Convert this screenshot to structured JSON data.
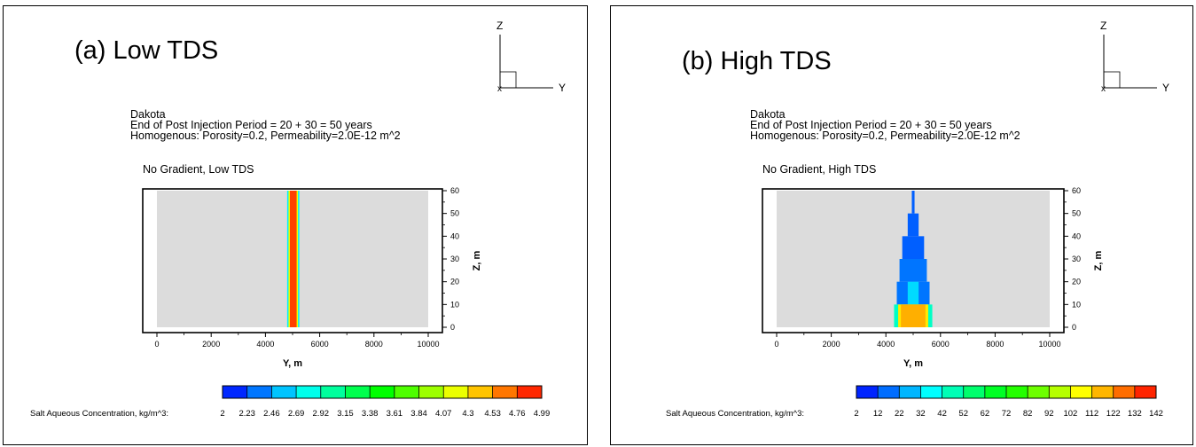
{
  "panels": [
    {
      "label": "(a) Low TDS",
      "axis_triad": {
        "z": "Z",
        "y": "Y"
      },
      "header_lines": [
        "Dakota",
        "End of Post Injection Period = 20 + 30 = 50 years",
        "Homogenous: Porosity=0.2, Permeability=2.0E-12 m^2"
      ],
      "plot_title": "No Gradient, Low TDS",
      "colorbar_label": "Salt Aqueous Concentration, kg/m^3:",
      "colorbar_ticks": [
        "2",
        "2.23",
        "2.46",
        "2.69",
        "2.92",
        "3.15",
        "3.38",
        "3.61",
        "3.84",
        "4.07",
        "4.3",
        "4.53",
        "4.76",
        "4.99"
      ]
    },
    {
      "label": "(b) High TDS",
      "axis_triad": {
        "z": "Z",
        "y": "Y"
      },
      "header_lines": [
        "Dakota",
        "End of Post Injection Period = 20 + 30 = 50 years",
        "Homogenous: Porosity=0.2, Permeability=2.0E-12 m^2"
      ],
      "plot_title": "No Gradient, High TDS",
      "colorbar_label": "Salt Aqueous Concentration, kg/m^3:",
      "colorbar_ticks": [
        "2",
        "12",
        "22",
        "32",
        "42",
        "52",
        "62",
        "72",
        "82",
        "92",
        "102",
        "112",
        "122",
        "132",
        "142"
      ]
    }
  ],
  "chart_data": [
    {
      "type": "heatmap",
      "title": "No Gradient, Low TDS",
      "xlabel": "Y, m",
      "ylabel": "Z, m",
      "xlim": [
        0,
        10000
      ],
      "ylim": [
        0,
        60
      ],
      "x_ticks": [
        "0",
        "2000",
        "4000",
        "6000",
        "8000",
        "10000"
      ],
      "y_ticks": [
        "0",
        "10",
        "20",
        "30",
        "40",
        "50",
        "60"
      ],
      "background_color": "#dcdcdc",
      "colorscale": [
        "#0000ff",
        "#00ffff",
        "#00ff00",
        "#ffff00",
        "#ff0000"
      ],
      "value_range": [
        2,
        4.99
      ],
      "plume_cells": [
        {
          "y_min": 4800,
          "y_max": 5250,
          "z_min": 0,
          "z_max": 60,
          "value": 2.7
        },
        {
          "y_min": 4850,
          "y_max": 5200,
          "z_min": 0,
          "z_max": 60,
          "value": 4.2
        },
        {
          "y_min": 4900,
          "y_max": 5150,
          "z_min": 0,
          "z_max": 60,
          "value": 4.8
        }
      ]
    },
    {
      "type": "heatmap",
      "title": "No Gradient, High TDS",
      "xlabel": "Y, m",
      "ylabel": "Z, m",
      "xlim": [
        0,
        10000
      ],
      "ylim": [
        0,
        60
      ],
      "x_ticks": [
        "0",
        "2000",
        "4000",
        "6000",
        "8000",
        "10000"
      ],
      "y_ticks": [
        "0",
        "10",
        "20",
        "30",
        "40",
        "50",
        "60"
      ],
      "background_color": "#dcdcdc",
      "colorscale": [
        "#0000ff",
        "#00ffff",
        "#00ff00",
        "#ffff00",
        "#ff0000"
      ],
      "value_range": [
        2,
        142
      ],
      "plume_cells": [
        {
          "y_min": 4950,
          "y_max": 5050,
          "z_min": 50,
          "z_max": 60,
          "value": 15
        },
        {
          "y_min": 4800,
          "y_max": 5200,
          "z_min": 40,
          "z_max": 50,
          "value": 15
        },
        {
          "y_min": 4600,
          "y_max": 5400,
          "z_min": 30,
          "z_max": 40,
          "value": 15
        },
        {
          "y_min": 4500,
          "y_max": 5500,
          "z_min": 20,
          "z_max": 30,
          "value": 18
        },
        {
          "y_min": 4400,
          "y_max": 5600,
          "z_min": 10,
          "z_max": 20,
          "value": 18
        },
        {
          "y_min": 4800,
          "y_max": 5200,
          "z_min": 10,
          "z_max": 20,
          "value": 32
        },
        {
          "y_min": 4300,
          "y_max": 5700,
          "z_min": 0,
          "z_max": 10,
          "value": 45
        },
        {
          "y_min": 4450,
          "y_max": 5550,
          "z_min": 0,
          "z_max": 10,
          "value": 110
        },
        {
          "y_min": 4550,
          "y_max": 5450,
          "z_min": 0,
          "z_max": 10,
          "value": 118
        }
      ]
    }
  ]
}
